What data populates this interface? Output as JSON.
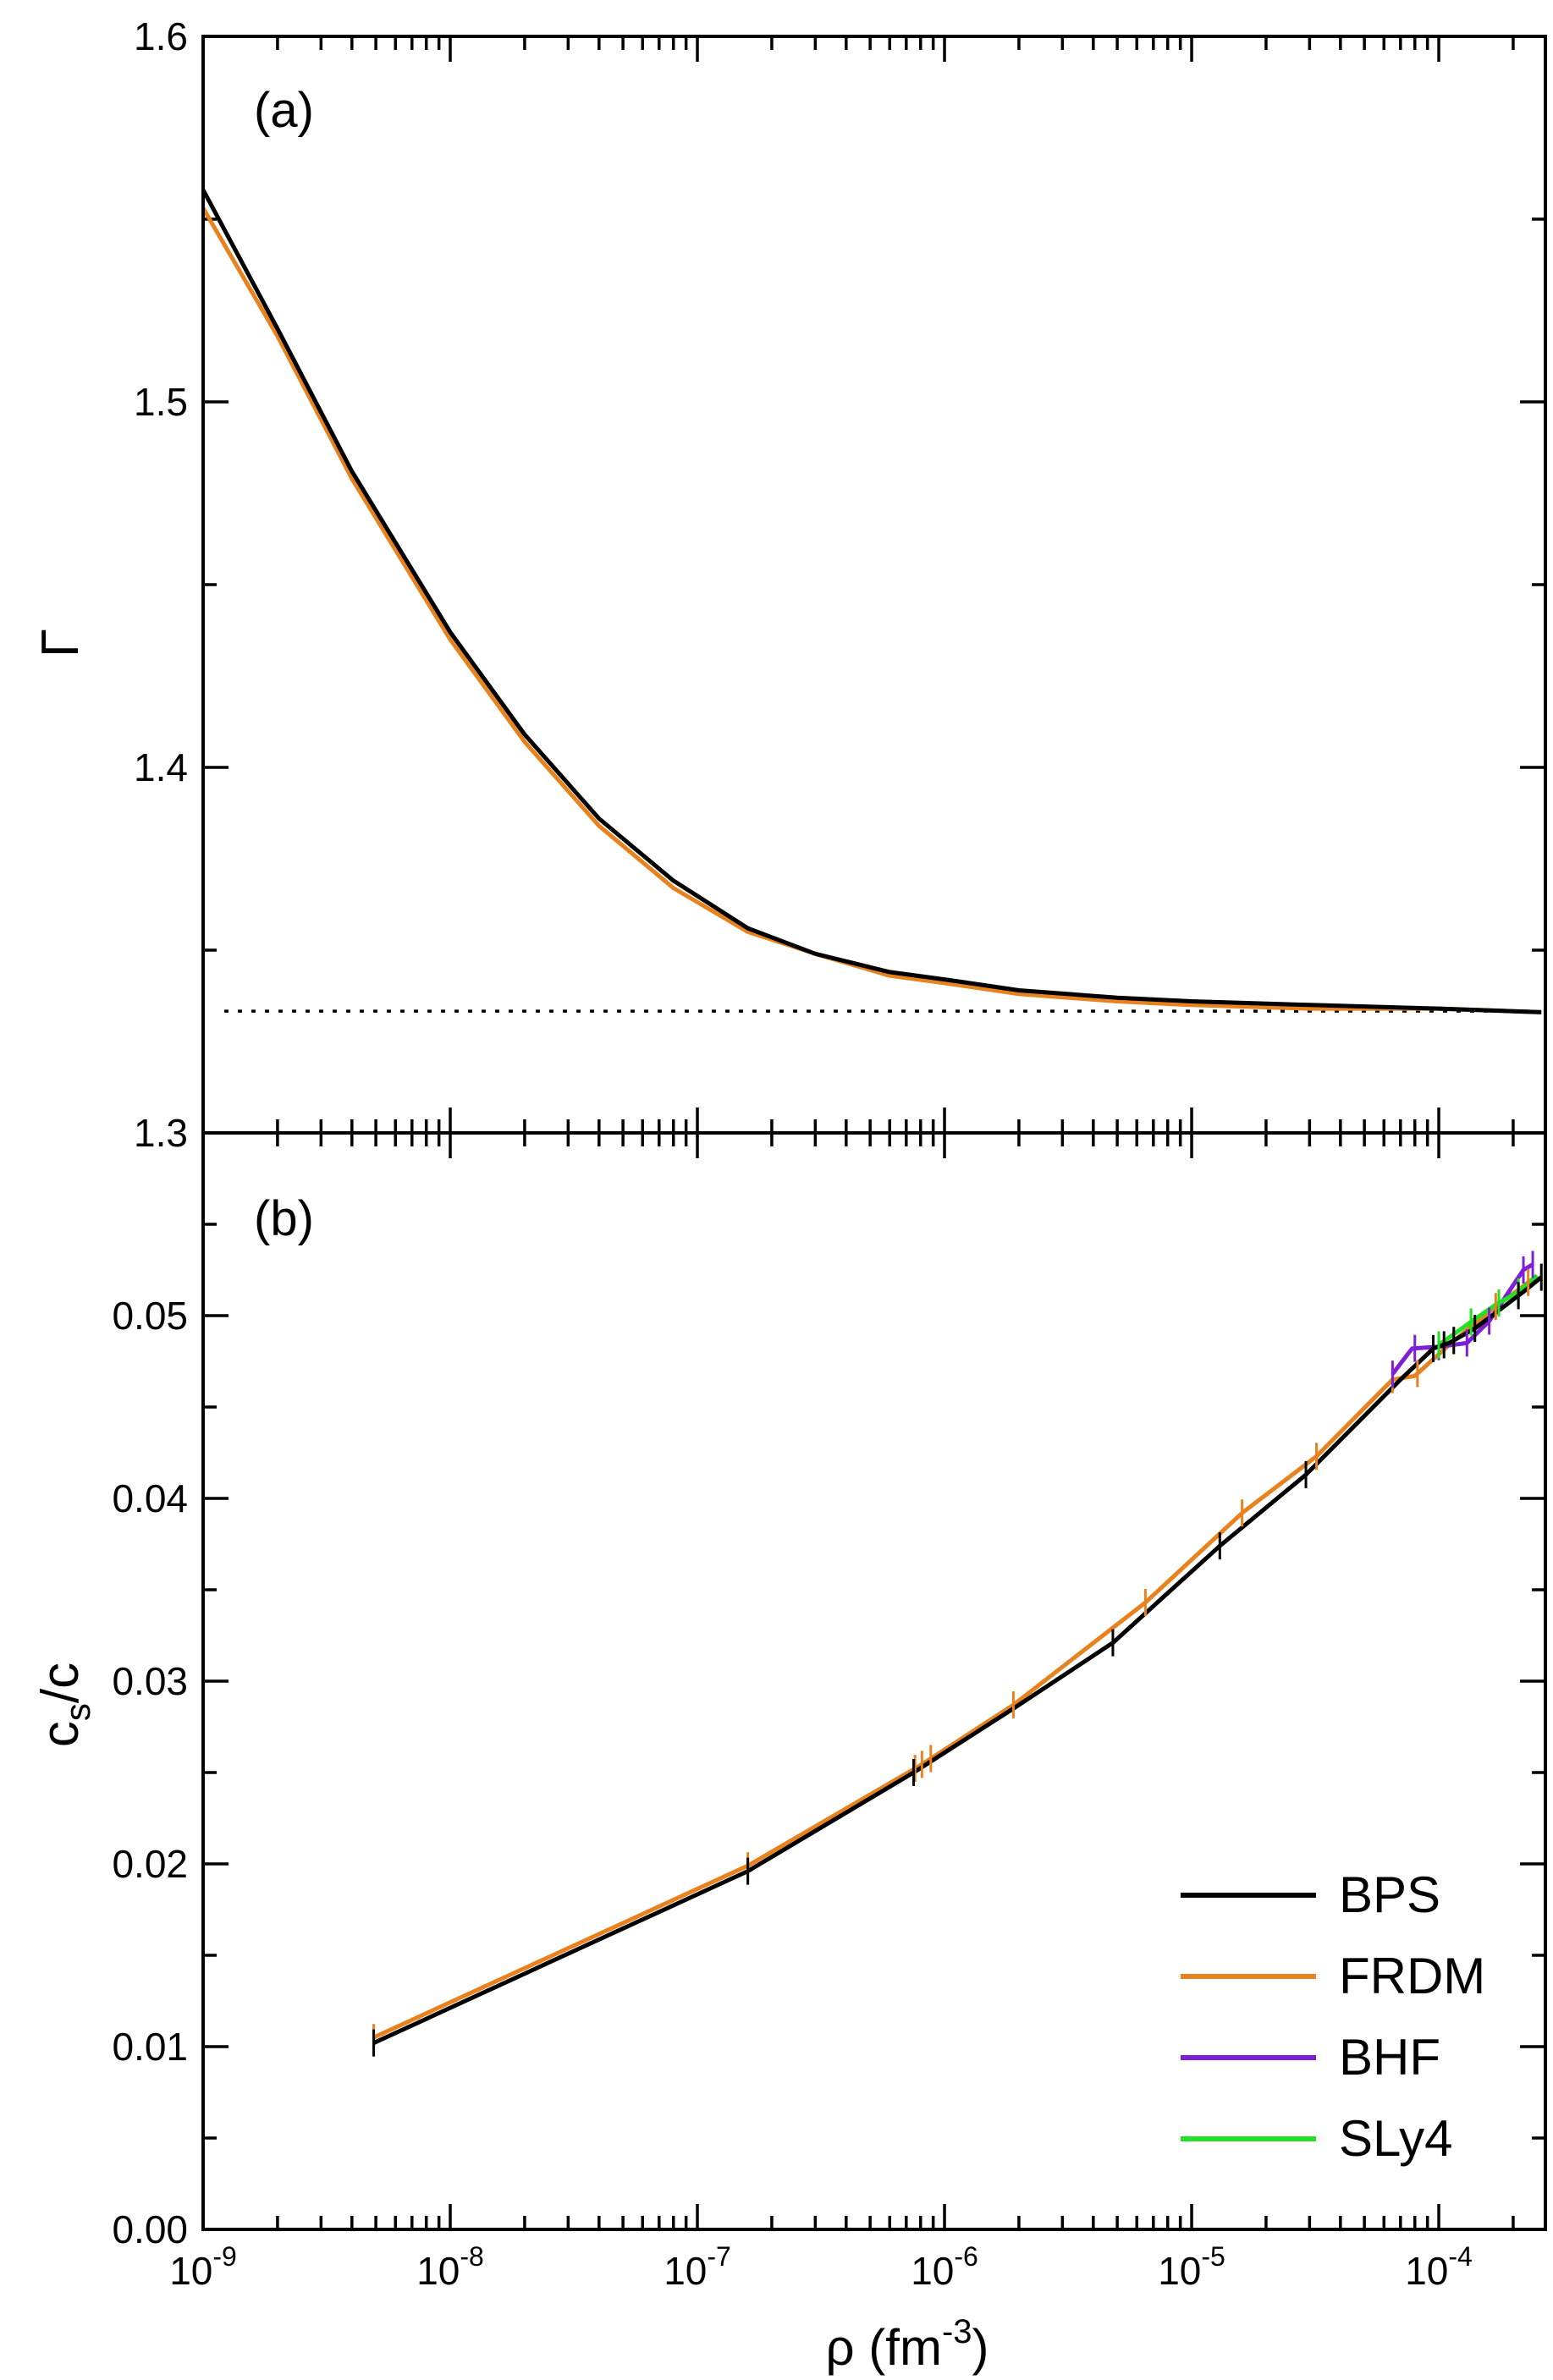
{
  "chart_data": [
    {
      "panel": "(a)",
      "type": "line",
      "xscale": "log",
      "xlim": [
        1e-09,
        0.00027
      ],
      "ylim": [
        1.3,
        1.6
      ],
      "ylabel": "Γ",
      "yticks": [
        1.3,
        1.4,
        1.5,
        1.6
      ],
      "ytick_labels": [
        "1.3",
        "1.4",
        "1.5",
        "1.6"
      ],
      "reference_line": {
        "y": 1.3333,
        "style": "dotted",
        "color": "#000000"
      },
      "series": [
        {
          "name": "FRDM",
          "color": "#e8821e",
          "x": [
            1e-09,
            2e-09,
            4e-09,
            1e-08,
            2e-08,
            4e-08,
            8e-08,
            1.6e-07,
            3e-07,
            6e-07,
            1e-06,
            2e-06,
            5e-06,
            1e-05,
            3e-05,
            0.0001,
            0.00026
          ],
          "y": [
            1.553,
            1.518,
            1.479,
            1.435,
            1.407,
            1.384,
            1.367,
            1.355,
            1.349,
            1.343,
            1.341,
            1.338,
            1.336,
            1.335,
            1.334,
            1.334,
            1.333
          ]
        },
        {
          "name": "BPS",
          "color": "#000000",
          "x": [
            1e-09,
            2e-09,
            4e-09,
            1e-08,
            2e-08,
            4e-08,
            8e-08,
            1.6e-07,
            3e-07,
            6e-07,
            1e-06,
            2e-06,
            5e-06,
            1e-05,
            3e-05,
            0.0001,
            0.00026
          ],
          "y": [
            1.558,
            1.52,
            1.481,
            1.437,
            1.409,
            1.386,
            1.369,
            1.356,
            1.349,
            1.344,
            1.342,
            1.339,
            1.337,
            1.336,
            1.335,
            1.334,
            1.333
          ]
        }
      ]
    },
    {
      "panel": "(b)",
      "type": "line",
      "xscale": "log",
      "xlim": [
        1e-09,
        0.00027
      ],
      "ylim": [
        0.0,
        0.06
      ],
      "xlabel": "ρ (fm",
      "xlabel_sup": "-3",
      "xlabel_end": ")",
      "ylabel": "c",
      "ylabel_sub": "s",
      "ylabel_end": "/c",
      "yticks": [
        0.0,
        0.01,
        0.02,
        0.03,
        0.04,
        0.05
      ],
      "ytick_labels": [
        "0.00",
        "0.01",
        "0.02",
        "0.03",
        "0.04",
        "0.05"
      ],
      "xticks": [
        1e-09,
        1e-08,
        1e-07,
        1e-06,
        1e-05,
        0.0001
      ],
      "xtick_labels": [
        {
          "base": "10",
          "exp": "-9"
        },
        {
          "base": "10",
          "exp": "-8"
        },
        {
          "base": "10",
          "exp": "-7"
        },
        {
          "base": "10",
          "exp": "-6"
        },
        {
          "base": "10",
          "exp": "-5"
        },
        {
          "base": "10",
          "exp": "-4"
        }
      ],
      "legend_position": "bottom-right",
      "series": [
        {
          "name": "FRDM",
          "color": "#e8821e",
          "x": [
            4.9e-09,
            1.6e-07,
            8e-07,
            1.9e-06,
            6.5e-06,
            1.6e-05,
            3.2e-05,
            6.5e-05,
            8e-05,
            0.00011,
            0.00017,
            0.00024
          ],
          "y": [
            0.0105,
            0.0199,
            0.0254,
            0.0287,
            0.0343,
            0.0392,
            0.0423,
            0.0465,
            0.0467,
            0.0484,
            0.0505,
            0.052
          ]
        },
        {
          "name": "BHF",
          "color": "#7d1fd6",
          "x": [
            6.5e-05,
            7.8e-05,
            0.0001,
            0.00013,
            0.00016,
            0.00022,
            0.00024
          ],
          "y": [
            0.0468,
            0.0482,
            0.0483,
            0.0485,
            0.0497,
            0.0525,
            0.0528
          ]
        },
        {
          "name": "SLy4",
          "color": "#22e022",
          "x": [
            0.0001,
            0.00013,
            0.00017,
            0.00021,
            0.00025
          ],
          "y": [
            0.0484,
            0.0495,
            0.0506,
            0.0513,
            0.0522
          ]
        },
        {
          "name": "BPS",
          "color": "#000000",
          "x": [
            4.9e-09,
            1.6e-07,
            7.5e-07,
            1.9e-06,
            4.8e-06,
            1.3e-05,
            2.9e-05,
            7e-05,
            9.5e-05,
            0.00011,
            0.00014,
            0.00022,
            0.00026
          ],
          "y": [
            0.0102,
            0.0196,
            0.025,
            0.0285,
            0.0321,
            0.0374,
            0.0413,
            0.0465,
            0.0482,
            0.0485,
            0.0493,
            0.0513,
            0.0521
          ]
        }
      ],
      "tick_marks": [
        {
          "series": "FRDM",
          "x": [
            4.9e-09,
            1.6e-07,
            7.6e-07,
            8.1e-07,
            8.8e-07,
            1.9e-06,
            6.5e-06,
            1.6e-05,
            3.2e-05,
            6.5e-05,
            8.2e-05,
            0.000115,
            0.00017,
            0.00023
          ]
        },
        {
          "series": "BHF",
          "x": [
            6.5e-05,
            8e-05,
            0.0001,
            0.00013,
            0.00016,
            0.00022,
            0.00024
          ]
        },
        {
          "series": "SLy4",
          "x": [
            0.0001,
            0.000135,
            0.000175,
            0.00021
          ]
        },
        {
          "series": "BPS",
          "x": [
            4.9e-09,
            1.6e-07,
            7.5e-07,
            4.8e-06,
            1.3e-05,
            2.9e-05,
            9.5e-05,
            0.000105,
            0.000115,
            0.00014,
            0.00021,
            0.00026
          ]
        }
      ],
      "legend": [
        {
          "label": "BPS",
          "color": "#000000"
        },
        {
          "label": "FRDM",
          "color": "#e8821e"
        },
        {
          "label": "BHF",
          "color": "#7d1fd6"
        },
        {
          "label": "SLy4",
          "color": "#22e022"
        }
      ]
    }
  ]
}
